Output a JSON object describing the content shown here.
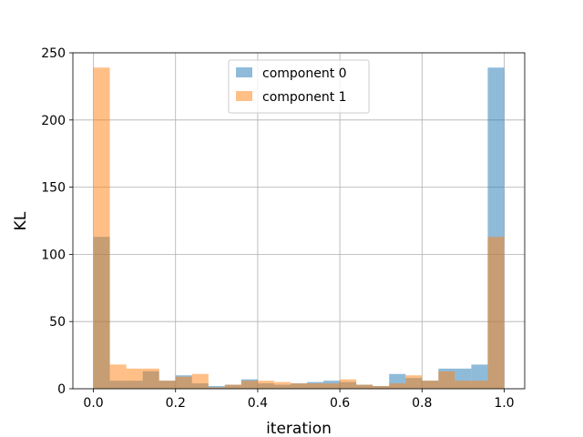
{
  "chart_data": {
    "type": "bar",
    "subtype": "histogram",
    "xlabel": "iteration",
    "ylabel": "KL",
    "xlim": [
      -0.05,
      1.05
    ],
    "ylim": [
      0,
      250
    ],
    "grid": true,
    "legend_position": "top-center",
    "bin_edges": [
      0.0,
      0.04,
      0.08,
      0.12,
      0.16,
      0.2,
      0.24,
      0.28,
      0.32,
      0.36,
      0.4,
      0.44,
      0.48,
      0.52,
      0.56,
      0.6,
      0.64,
      0.68,
      0.72,
      0.76,
      0.8,
      0.84,
      0.88,
      0.92,
      0.96,
      1.0
    ],
    "x_ticks": [
      0.0,
      0.2,
      0.4,
      0.6,
      0.8,
      1.0
    ],
    "x_tick_labels": [
      "0.0",
      "0.2",
      "0.4",
      "0.6",
      "0.8",
      "1.0"
    ],
    "y_ticks": [
      0,
      50,
      100,
      150,
      200,
      250
    ],
    "y_tick_labels": [
      "0",
      "50",
      "100",
      "150",
      "200",
      "250"
    ],
    "series": [
      {
        "name": "component 0",
        "color": "#1f77b4",
        "values": [
          113,
          6,
          6,
          13,
          6,
          10,
          4,
          2,
          3,
          7,
          4,
          3,
          4,
          5,
          6,
          5,
          3,
          2,
          11,
          8,
          6,
          15,
          15,
          18,
          239
        ]
      },
      {
        "name": "component 1",
        "color": "#ff7f0e",
        "values": [
          239,
          18,
          15,
          15,
          6,
          9,
          11,
          1,
          3,
          6,
          6,
          5,
          4,
          4,
          4,
          7,
          3,
          2,
          4,
          10,
          6,
          13,
          6,
          6,
          113
        ]
      }
    ]
  }
}
